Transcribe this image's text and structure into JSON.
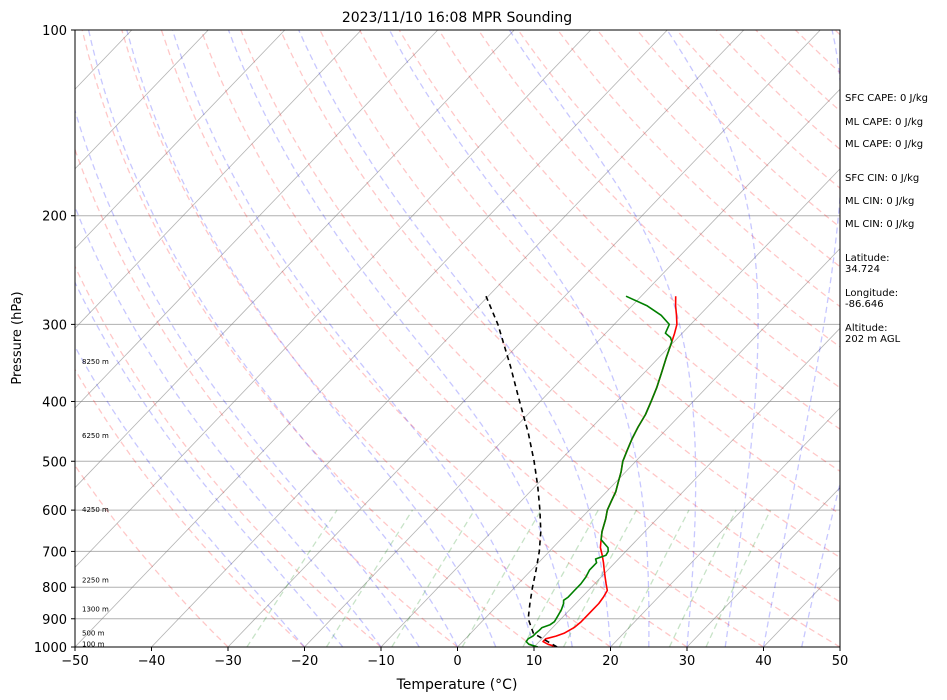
{
  "chart_data": {
    "type": "line",
    "subtype": "skew-t log-p sounding",
    "title": "2023/11/10 16:08 MPR Sounding",
    "xlabel": "Temperature (°C)",
    "ylabel": "Pressure (hPa)",
    "x_ticks": [
      "−50",
      "−40",
      "−30",
      "−20",
      "−10",
      "0",
      "10",
      "20",
      "30",
      "40",
      "50"
    ],
    "y_ticks": [
      "100",
      "200",
      "300",
      "400",
      "500",
      "600",
      "700",
      "800",
      "900",
      "1000"
    ],
    "xlim": [
      -50,
      50
    ],
    "ylim": [
      1000,
      100
    ],
    "y_scale": "log",
    "grid": true,
    "height_labels": [
      {
        "text": "100 m",
        "p": 990
      },
      {
        "text": "500 m",
        "p": 950
      },
      {
        "text": "1300 m",
        "p": 870
      },
      {
        "text": "2250 m",
        "p": 780
      },
      {
        "text": "4250 m",
        "p": 600
      },
      {
        "text": "6250 m",
        "p": 455
      },
      {
        "text": "8250 m",
        "p": 345
      }
    ],
    "series": [
      {
        "role": "temperature",
        "color": "#ff0000",
        "points": [
          [
            1000,
            13.0
          ],
          [
            990,
            11.5
          ],
          [
            980,
            10.5
          ],
          [
            970,
            10.5
          ],
          [
            960,
            11.5
          ],
          [
            950,
            12.2
          ],
          [
            930,
            12.8
          ],
          [
            910,
            13.0
          ],
          [
            890,
            13.0
          ],
          [
            870,
            13.0
          ],
          [
            850,
            13.0
          ],
          [
            830,
            12.8
          ],
          [
            810,
            12.5
          ],
          [
            790,
            11.5
          ],
          [
            770,
            10.5
          ],
          [
            750,
            9.5
          ],
          [
            730,
            8.5
          ],
          [
            710,
            7.4
          ],
          [
            700,
            6.8
          ],
          [
            690,
            6.2
          ],
          [
            670,
            5.3
          ],
          [
            650,
            4.4
          ],
          [
            620,
            3.3
          ],
          [
            600,
            2.4
          ],
          [
            580,
            1.8
          ],
          [
            560,
            1.2
          ],
          [
            540,
            0.3
          ],
          [
            520,
            -0.6
          ],
          [
            500,
            -1.7
          ],
          [
            480,
            -2.5
          ],
          [
            460,
            -3.3
          ],
          [
            440,
            -4.0
          ],
          [
            420,
            -4.6
          ],
          [
            400,
            -5.5
          ],
          [
            380,
            -6.5
          ],
          [
            360,
            -7.7
          ],
          [
            340,
            -9.0
          ],
          [
            320,
            -10.3
          ],
          [
            310,
            -11.0
          ],
          [
            300,
            -11.8
          ],
          [
            290,
            -13.0
          ],
          [
            280,
            -14.3
          ],
          [
            270,
            -15.5
          ]
        ]
      },
      {
        "role": "dewpoint",
        "color": "#008000",
        "points": [
          [
            1000,
            10.5
          ],
          [
            990,
            9.0
          ],
          [
            980,
            8.3
          ],
          [
            970,
            8.2
          ],
          [
            960,
            8.5
          ],
          [
            950,
            8.5
          ],
          [
            940,
            8.6
          ],
          [
            930,
            8.6
          ],
          [
            920,
            9.3
          ],
          [
            910,
            9.5
          ],
          [
            890,
            9.2
          ],
          [
            870,
            8.9
          ],
          [
            850,
            8.4
          ],
          [
            840,
            8.0
          ],
          [
            830,
            8.2
          ],
          [
            810,
            8.2
          ],
          [
            790,
            8.2
          ],
          [
            770,
            8.0
          ],
          [
            750,
            7.6
          ],
          [
            730,
            7.6
          ],
          [
            720,
            7.0
          ],
          [
            710,
            7.9
          ],
          [
            700,
            7.7
          ],
          [
            690,
            7.2
          ],
          [
            670,
            5.3
          ],
          [
            650,
            4.4
          ],
          [
            620,
            3.3
          ],
          [
            600,
            2.4
          ],
          [
            580,
            1.8
          ],
          [
            560,
            1.2
          ],
          [
            540,
            0.3
          ],
          [
            520,
            -0.6
          ],
          [
            500,
            -1.7
          ],
          [
            480,
            -2.5
          ],
          [
            460,
            -3.3
          ],
          [
            440,
            -4.0
          ],
          [
            420,
            -4.6
          ],
          [
            400,
            -5.5
          ],
          [
            380,
            -6.5
          ],
          [
            360,
            -7.7
          ],
          [
            340,
            -9.0
          ],
          [
            320,
            -10.3
          ],
          [
            315,
            -11.0
          ],
          [
            310,
            -12.2
          ],
          [
            300,
            -12.8
          ],
          [
            290,
            -15.0
          ],
          [
            280,
            -18.0
          ],
          [
            270,
            -22.0
          ]
        ]
      },
      {
        "role": "parcel-profile",
        "color": "#000000",
        "style": "dashed",
        "points": [
          [
            1000,
            13.0
          ],
          [
            950,
            8.2
          ],
          [
            900,
            5.7
          ],
          [
            850,
            4.0
          ],
          [
            800,
            2.3
          ],
          [
            750,
            0.6
          ],
          [
            700,
            -1.3
          ],
          [
            650,
            -3.6
          ],
          [
            600,
            -6.4
          ],
          [
            550,
            -9.6
          ],
          [
            500,
            -13.3
          ],
          [
            450,
            -17.6
          ],
          [
            400,
            -22.7
          ],
          [
            350,
            -28.4
          ],
          [
            300,
            -35.2
          ],
          [
            270,
            -40.3
          ]
        ]
      }
    ],
    "background_lines": {
      "dry_adiabats_color": "#ff0000",
      "moist_adiabats_color": "#0000ff",
      "mixing_ratio_color": "#008000",
      "isotherm_color": "#808080"
    }
  },
  "side_panel": {
    "sfc_cape": "SFC CAPE: 0 J/kg",
    "ml_cape_1": "ML CAPE: 0 J/kg",
    "ml_cape_2": "ML CAPE: 0 J/kg",
    "sfc_cin": "SFC CIN: 0 J/kg",
    "ml_cin_1": "ML CIN: 0 J/kg",
    "ml_cin_2": "ML CIN: 0 J/kg",
    "latitude_label": "Latitude:",
    "latitude_value": "34.724",
    "longitude_label": "Longitude:",
    "longitude_value": "-86.646",
    "altitude_label": "Altitude:",
    "altitude_value": "202 m AGL"
  }
}
